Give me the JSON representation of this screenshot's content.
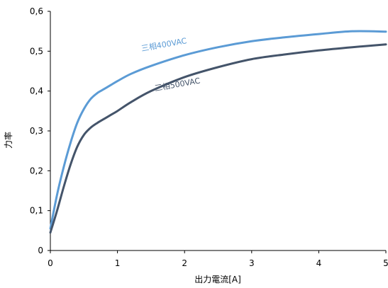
{
  "chart_data": {
    "type": "line",
    "title": "",
    "xlabel": "出力電流[A]",
    "ylabel": "力率",
    "xlim": [
      0,
      5
    ],
    "ylim": [
      0,
      0.6
    ],
    "xticks": [
      0,
      1,
      2,
      3,
      4,
      5
    ],
    "xtick_labels": [
      "0",
      "1",
      "2",
      "3",
      "4",
      "5"
    ],
    "yticks": [
      0,
      0.1,
      0.2,
      0.3,
      0.4,
      0.5,
      0.6
    ],
    "ytick_labels": [
      "0",
      "0,1",
      "0,2",
      "0,3",
      "0,4",
      "0,5",
      "0,6"
    ],
    "grid": false,
    "legend": "inline labels",
    "series": [
      {
        "name": "三相400VAC",
        "color": "#5b9bd5",
        "x": [
          0,
          0.1,
          0.2,
          0.3,
          0.4,
          0.5,
          0.6,
          0.7,
          0.8,
          0.9,
          1.0,
          1.2,
          1.5,
          2.0,
          2.5,
          3.0,
          3.5,
          4.0,
          4.5,
          5.0
        ],
        "y": [
          0.055,
          0.14,
          0.21,
          0.27,
          0.32,
          0.355,
          0.38,
          0.395,
          0.405,
          0.415,
          0.425,
          0.443,
          0.463,
          0.49,
          0.51,
          0.525,
          0.535,
          0.543,
          0.55,
          0.549
        ]
      },
      {
        "name": "三相500VAC",
        "color": "#44546a",
        "x": [
          0,
          0.1,
          0.2,
          0.3,
          0.4,
          0.5,
          0.6,
          0.7,
          0.8,
          0.9,
          1.0,
          1.2,
          1.5,
          2.0,
          2.5,
          3.0,
          3.5,
          4.0,
          4.5,
          5.0
        ],
        "y": [
          0.045,
          0.1,
          0.16,
          0.215,
          0.26,
          0.29,
          0.308,
          0.32,
          0.33,
          0.34,
          0.35,
          0.372,
          0.4,
          0.435,
          0.46,
          0.48,
          0.492,
          0.502,
          0.51,
          0.517
        ]
      }
    ],
    "annotations": [
      {
        "text": "三相400VAC",
        "x": 1.7,
        "y": 0.51,
        "series": 0
      },
      {
        "text": "三相500VAC",
        "x": 1.9,
        "y": 0.41,
        "series": 1
      }
    ]
  }
}
